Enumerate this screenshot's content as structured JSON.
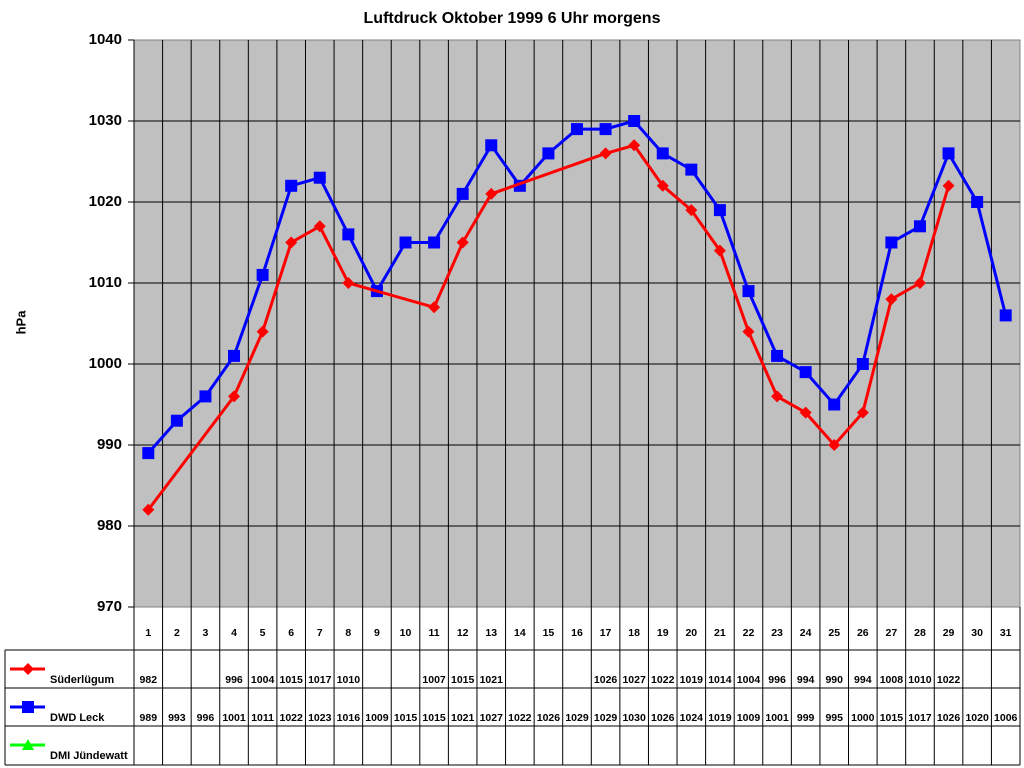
{
  "chart_data": {
    "type": "line",
    "title": "Luftdruck Oktober 1999 6 Uhr morgens",
    "xlabel": "",
    "ylabel": "hPa",
    "ylim": [
      970,
      1040
    ],
    "yticks": [
      970,
      980,
      990,
      1000,
      1010,
      1020,
      1030,
      1040
    ],
    "grid": true,
    "legend_position": "data table left",
    "categories": [
      1,
      2,
      3,
      4,
      5,
      6,
      7,
      8,
      9,
      10,
      11,
      12,
      13,
      14,
      15,
      16,
      17,
      18,
      19,
      20,
      21,
      22,
      23,
      24,
      25,
      26,
      27,
      28,
      29,
      30,
      31
    ],
    "series": [
      {
        "name": "Süderlügum",
        "color": "#ff0000",
        "marker": "diamond",
        "values": [
          982,
          null,
          null,
          996,
          1004,
          1015,
          1017,
          1010,
          null,
          null,
          1007,
          1015,
          1021,
          null,
          null,
          null,
          1026,
          1027,
          1022,
          1019,
          1014,
          1004,
          996,
          994,
          990,
          994,
          1008,
          1010,
          1022,
          null,
          null
        ]
      },
      {
        "name": "DWD Leck",
        "color": "#0000ff",
        "marker": "square",
        "values": [
          989,
          993,
          996,
          1001,
          1011,
          1022,
          1023,
          1016,
          1009,
          1015,
          1015,
          1021,
          1027,
          1022,
          1026,
          1029,
          1029,
          1030,
          1026,
          1024,
          1019,
          1009,
          1001,
          999,
          995,
          1000,
          1015,
          1017,
          1026,
          1020,
          1006
        ]
      },
      {
        "name": "DMI Jündewatt",
        "color": "#00ff00",
        "marker": "triangle",
        "values": [
          null,
          null,
          null,
          null,
          null,
          null,
          null,
          null,
          null,
          null,
          null,
          null,
          null,
          null,
          null,
          null,
          null,
          null,
          null,
          null,
          null,
          null,
          null,
          null,
          null,
          null,
          null,
          null,
          null,
          null,
          null
        ]
      }
    ]
  },
  "colors": {
    "plot_bg": "#c0c0c0"
  }
}
